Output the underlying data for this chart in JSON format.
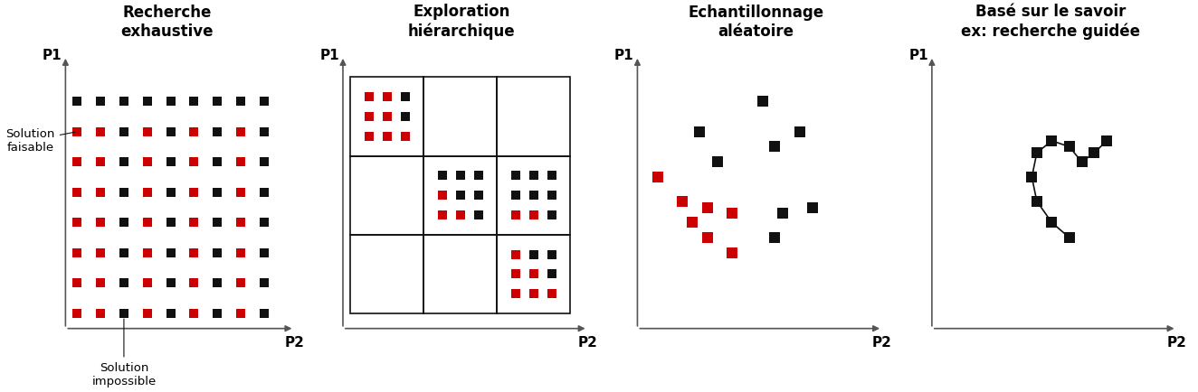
{
  "title1": "Recherche\nexhaustive",
  "title2": "Exploration\nhiérarchique",
  "title3": "Echantillonnage\naléatoire",
  "title4": "Basé sur le savoir\nex: recherche guidée",
  "label_p1": "P1",
  "label_p2": "P2",
  "label_feasible": "Solution\nfaisable",
  "label_impossible": "Solution\nimpossible",
  "color_red": "#cc0000",
  "color_black": "#111111",
  "color_axis": "#555555",
  "background": "#ffffff",
  "title_fontsize": 12,
  "annot_fontsize": 9.5,
  "p_label_fontsize": 11
}
